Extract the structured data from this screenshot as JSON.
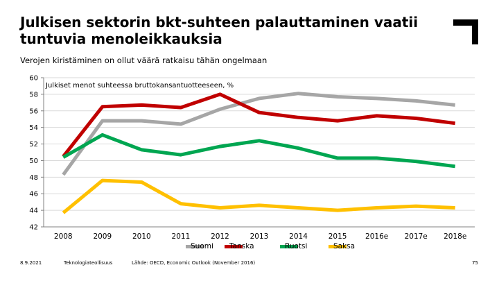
{
  "slide": {
    "title": "Julkisen sektorin bkt-suhteen palauttaminen vaatii tuntuvia menoleikkauksia",
    "subtitle": "Verojen kiristäminen on ollut väärä ratkaisu tähän ongelmaan",
    "date": "8.9.2021",
    "organization": "Teknologiateollisuus",
    "source": "Lähde: OECD, Economic Outlook (November 2016)",
    "page_number": "75",
    "logo_icon": "corner-bracket-logo"
  },
  "chart_data": {
    "type": "line",
    "title": "Julkiset menot suhteessa bruttokansantuotteeseen, %",
    "xlabel": "",
    "ylabel": "",
    "categories": [
      "2008",
      "2009",
      "2010",
      "2011",
      "2012",
      "2013",
      "2014",
      "2015",
      "2016e",
      "2017e",
      "2018e"
    ],
    "ylim": [
      42,
      60
    ],
    "yticks": [
      "60",
      "58",
      "56",
      "54",
      "52",
      "50",
      "48",
      "46",
      "44",
      "42"
    ],
    "grid": true,
    "legend_position": "bottom",
    "series": [
      {
        "name": "Suomi",
        "color": "#a6a6a6",
        "values": [
          48.3,
          54.8,
          54.8,
          54.4,
          56.2,
          57.5,
          58.1,
          57.7,
          57.5,
          57.2,
          56.7
        ]
      },
      {
        "name": "Tanska",
        "color": "#c00000",
        "values": [
          50.5,
          56.5,
          56.7,
          56.4,
          58.0,
          55.8,
          55.2,
          54.8,
          55.4,
          55.1,
          54.5
        ]
      },
      {
        "name": "Ruotsi",
        "color": "#00a651",
        "values": [
          50.4,
          53.1,
          51.3,
          50.7,
          51.7,
          52.4,
          51.5,
          50.3,
          50.3,
          49.9,
          49.3
        ]
      },
      {
        "name": "Saksa",
        "color": "#ffc000",
        "values": [
          43.7,
          47.6,
          47.4,
          44.8,
          44.3,
          44.6,
          44.3,
          44.0,
          44.3,
          44.5,
          44.3
        ]
      }
    ]
  }
}
